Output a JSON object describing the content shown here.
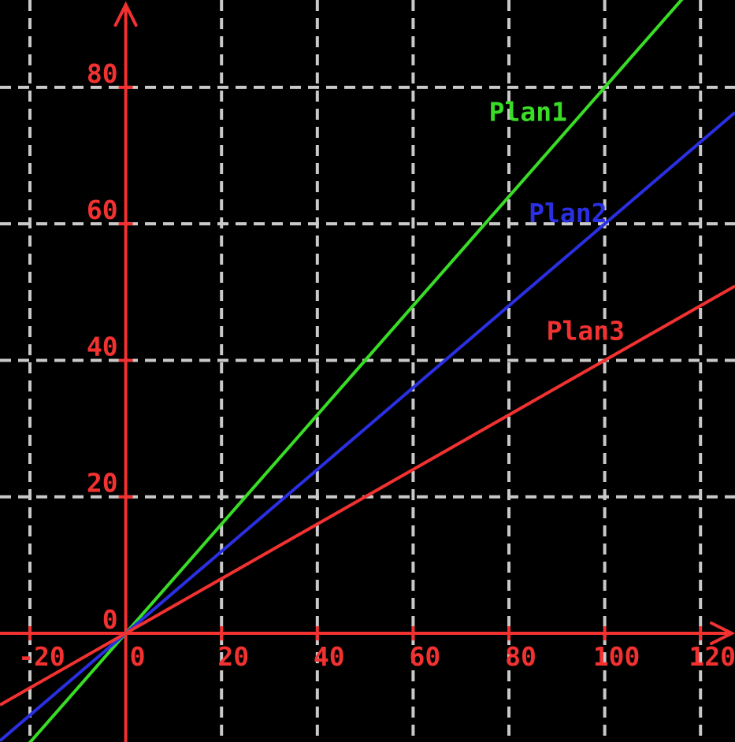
{
  "chart_data": {
    "type": "line",
    "title": "",
    "xlabel": "",
    "ylabel": "",
    "xlim": [
      -26.25,
      127.2
    ],
    "ylim": [
      -15.93,
      92.8
    ],
    "x_ticks": [
      -20,
      0,
      20,
      40,
      60,
      80,
      100,
      120
    ],
    "y_ticks": [
      0,
      20,
      40,
      60,
      80
    ],
    "grid": true,
    "legend_position": "inline-labels",
    "x_samples": [
      0,
      20,
      40,
      60,
      80,
      100,
      120
    ],
    "series": [
      {
        "name": "Plan1",
        "equation": "y = 0.8x",
        "slope": 0.8,
        "intercept": 0,
        "values": [
          0,
          16,
          32,
          48,
          64,
          80,
          96
        ],
        "color": "#39dd26",
        "label_pos": {
          "x": 84,
          "y": 76.4
        }
      },
      {
        "name": "Plan2",
        "equation": "y = 0.6x",
        "slope": 0.6,
        "intercept": 0,
        "values": [
          0,
          12,
          24,
          36,
          48,
          60,
          72
        ],
        "color": "#2b2fe3",
        "label_pos": {
          "x": 92.3,
          "y": 61.6
        }
      },
      {
        "name": "Plan3",
        "equation": "y = 0.4x",
        "slope": 0.4,
        "intercept": 0,
        "values": [
          0,
          8,
          16,
          24,
          32,
          40,
          48
        ],
        "color": "#f23131",
        "label_pos": {
          "x": 96,
          "y": 44.3
        }
      }
    ]
  },
  "styles": {
    "background_color": "#000000",
    "axis_color": "#f23131",
    "tick_label_color": "#f23131",
    "grid_color": "#c9c9c9"
  }
}
